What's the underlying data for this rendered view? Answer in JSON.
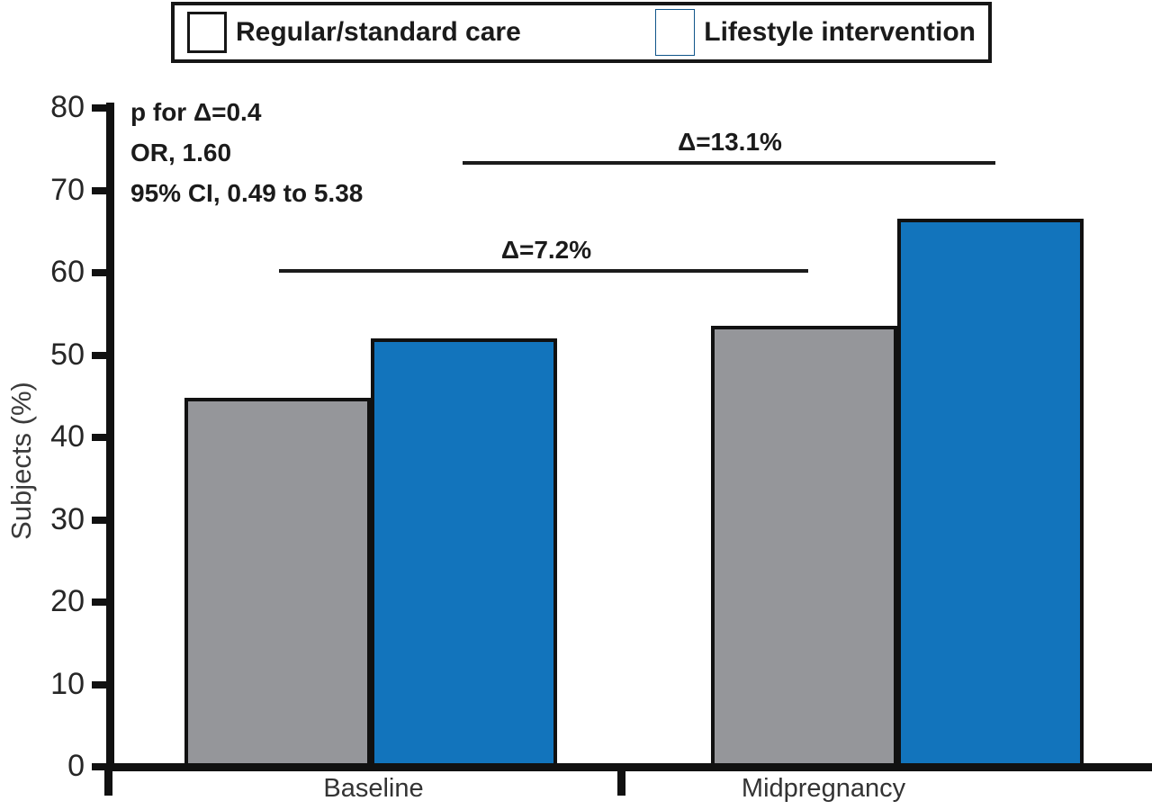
{
  "legend": {
    "items": [
      {
        "label": "Regular/standard care",
        "color": "#95969A"
      },
      {
        "label": "Lifestyle intervention",
        "color": "#1274BC"
      }
    ]
  },
  "chart_data": {
    "type": "bar",
    "title": "",
    "categories": [
      "Baseline",
      "Midpregnancy"
    ],
    "series": [
      {
        "name": "Regular/standard care",
        "color": "#95969A",
        "values": [
          44.8,
          53.5
        ]
      },
      {
        "name": "Lifestyle intervention",
        "color": "#1274BC",
        "values": [
          52.0,
          66.6
        ]
      }
    ],
    "xlabel": "",
    "ylabel": "Subjects (%)",
    "ylim": [
      0,
      80
    ],
    "yticks": [
      0,
      10,
      20,
      30,
      40,
      50,
      60,
      70,
      80
    ],
    "grid": false,
    "legend_position": "top",
    "annotations": {
      "stats": [
        "p for Δ=0.4",
        "OR, 1.60",
        "95% CI, 0.49 to 5.38"
      ],
      "deltas": [
        {
          "label": "Δ=7.2%"
        },
        {
          "label": "Δ=13.1%"
        }
      ]
    }
  }
}
